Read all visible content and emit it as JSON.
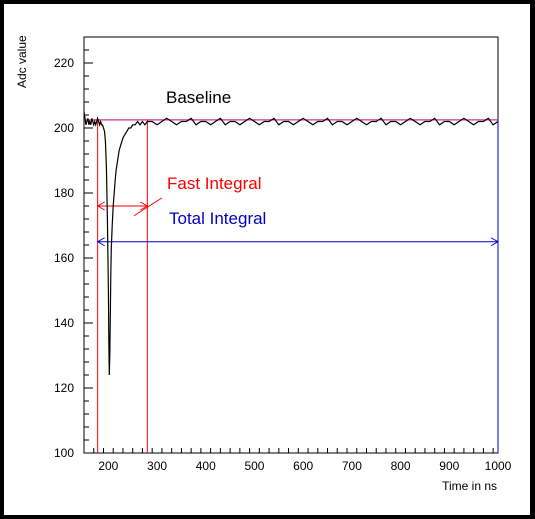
{
  "chart_data": {
    "type": "line",
    "title": "",
    "xlabel": "Time in ns",
    "ylabel": "Adc value",
    "xlim": [
      150,
      1000
    ],
    "ylim": [
      100,
      228
    ],
    "x_ticks": [
      200,
      300,
      400,
      500,
      600,
      700,
      800,
      900,
      1000
    ],
    "y_ticks": [
      100,
      120,
      140,
      160,
      180,
      200,
      220
    ],
    "grid": false,
    "legend": "none",
    "series": [
      {
        "x": [
          150,
          152,
          154,
          156,
          158,
          160,
          162,
          164,
          166,
          168,
          170,
          172,
          174,
          176,
          178,
          180,
          182,
          184,
          186,
          188,
          190,
          192,
          194,
          196,
          198,
          200,
          201,
          202,
          203,
          204,
          205,
          206,
          208,
          210,
          212,
          214,
          216,
          218,
          220,
          222,
          224,
          226,
          228,
          230,
          234,
          238,
          242,
          246,
          250,
          255,
          260,
          265,
          270,
          275,
          280,
          290,
          300,
          310,
          320,
          330,
          340,
          350,
          360,
          370,
          380,
          390,
          400,
          410,
          420,
          430,
          440,
          450,
          460,
          470,
          480,
          490,
          500,
          510,
          520,
          530,
          540,
          550,
          560,
          570,
          580,
          590,
          600,
          610,
          620,
          630,
          640,
          650,
          660,
          670,
          680,
          690,
          700,
          710,
          720,
          730,
          740,
          750,
          760,
          770,
          780,
          790,
          800,
          810,
          820,
          830,
          840,
          850,
          860,
          870,
          880,
          890,
          900,
          910,
          920,
          930,
          940,
          950,
          960,
          970,
          980,
          990,
          1000
        ],
        "y": [
          205,
          203,
          201,
          202,
          203,
          201,
          202,
          201,
          203,
          202,
          201,
          202,
          201,
          202,
          203,
          202,
          201,
          202,
          201,
          201,
          200,
          199,
          196,
          188,
          172,
          150,
          135,
          124,
          130,
          142,
          155,
          163,
          170,
          176,
          180,
          184,
          187,
          189,
          191,
          193,
          194,
          195,
          196,
          197,
          198,
          199,
          200,
          200,
          201,
          201,
          202,
          201,
          202,
          201,
          202,
          202,
          201,
          202,
          203,
          202,
          201,
          202,
          202,
          203,
          201,
          202,
          202,
          201,
          202,
          203,
          201,
          202,
          202,
          201,
          202,
          203,
          202,
          201,
          202,
          202,
          203,
          201,
          202,
          202,
          201,
          202,
          203,
          202,
          201,
          202,
          202,
          203,
          201,
          202,
          202,
          201,
          202,
          203,
          202,
          201,
          202,
          202,
          203,
          201,
          202,
          202,
          201,
          202,
          203,
          202,
          201,
          202,
          202,
          203,
          201,
          202,
          202,
          201,
          202,
          203,
          202,
          201,
          202,
          202,
          203,
          201,
          202
        ]
      }
    ],
    "baseline_value": 202.5,
    "fast_integral_range": [
      178,
      280
    ],
    "total_integral_range": [
      178,
      1000
    ],
    "annotations": {
      "baseline": "Baseline",
      "fast_integral": "Fast Integral",
      "total_integral": "Total Integral"
    },
    "colors": {
      "trace": "#000000",
      "baseline": "#cc3399",
      "fast": "#ff0000",
      "total": "#0000cc"
    }
  }
}
